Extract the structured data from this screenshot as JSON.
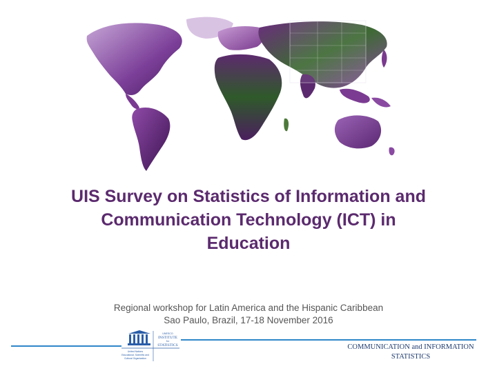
{
  "slide": {
    "title_lines": [
      "UIS Survey on Statistics of Information and",
      "Communication Technology (ICT) in",
      "Education"
    ],
    "subtitle_lines": [
      "Regional workshop for Latin America and the Hispanic Caribbean",
      "Sao Paulo, Brazil, 17-18 November 2016"
    ],
    "footer_lines": [
      "COMMUNICATION and INFORMATION",
      "STATISTICS"
    ]
  },
  "logo": {
    "name": "uis-unesco-logo",
    "caption_lines": [
      "UNESCO",
      "INSTITUTE",
      "for",
      "STATISTICS"
    ],
    "side_text_lines": [
      "United Nations",
      "Educational, Scientific and",
      "Cultural Organization"
    ]
  },
  "colors": {
    "title": "#5b2a6e",
    "rule": "#2e86c9",
    "map_purple": "#6a2f8a",
    "map_green": "#2f6b2a"
  }
}
